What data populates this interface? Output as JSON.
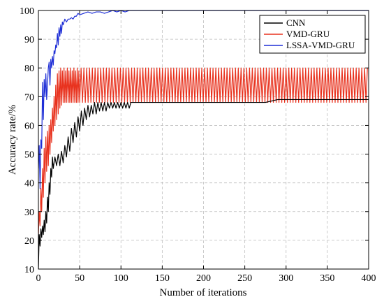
{
  "chart_data": {
    "type": "line",
    "title": "",
    "xlabel": "Number of iterations",
    "ylabel": "Accuracy rate/%",
    "xlim": [
      0,
      400
    ],
    "ylim": [
      10,
      100
    ],
    "x_ticks": [
      "0",
      "50",
      "100",
      "150",
      "200",
      "250",
      "300",
      "350",
      "400"
    ],
    "y_ticks": [
      "10",
      "20",
      "30",
      "40",
      "50",
      "60",
      "70",
      "80",
      "90",
      "100"
    ],
    "grid": true,
    "grid_style": "dashed",
    "legend_position": "top-right",
    "series": [
      {
        "name": "CNN",
        "color": "#000000",
        "points": [
          [
            0,
            10
          ],
          [
            1,
            22
          ],
          [
            2,
            18
          ],
          [
            3,
            24
          ],
          [
            4,
            21
          ],
          [
            5,
            25
          ],
          [
            6,
            22
          ],
          [
            7,
            27
          ],
          [
            8,
            23
          ],
          [
            9,
            30
          ],
          [
            10,
            26
          ],
          [
            11,
            35
          ],
          [
            12,
            30
          ],
          [
            13,
            40
          ],
          [
            14,
            36
          ],
          [
            15,
            45
          ],
          [
            16,
            42
          ],
          [
            17,
            49
          ],
          [
            18,
            45
          ],
          [
            20,
            49
          ],
          [
            22,
            46
          ],
          [
            24,
            50
          ],
          [
            26,
            46
          ],
          [
            28,
            51
          ],
          [
            30,
            47
          ],
          [
            32,
            53
          ],
          [
            34,
            49
          ],
          [
            36,
            56
          ],
          [
            38,
            51
          ],
          [
            40,
            59
          ],
          [
            42,
            54
          ],
          [
            44,
            61
          ],
          [
            46,
            56
          ],
          [
            48,
            63
          ],
          [
            50,
            58
          ],
          [
            52,
            65
          ],
          [
            54,
            60
          ],
          [
            56,
            66
          ],
          [
            58,
            62
          ],
          [
            60,
            67
          ],
          [
            62,
            63
          ],
          [
            64,
            67
          ],
          [
            66,
            64
          ],
          [
            68,
            68
          ],
          [
            70,
            64
          ],
          [
            72,
            68
          ],
          [
            74,
            65
          ],
          [
            76,
            68
          ],
          [
            78,
            65
          ],
          [
            80,
            68
          ],
          [
            82,
            65
          ],
          [
            84,
            68
          ],
          [
            86,
            66
          ],
          [
            88,
            68
          ],
          [
            90,
            66
          ],
          [
            92,
            68
          ],
          [
            94,
            66
          ],
          [
            96,
            68
          ],
          [
            98,
            66
          ],
          [
            100,
            68
          ],
          [
            102,
            66
          ],
          [
            104,
            68
          ],
          [
            106,
            66
          ],
          [
            108,
            68
          ],
          [
            110,
            66
          ],
          [
            112,
            68
          ],
          [
            115,
            68
          ],
          [
            130,
            68
          ],
          [
            150,
            68
          ],
          [
            175,
            68
          ],
          [
            200,
            68
          ],
          [
            225,
            68
          ],
          [
            250,
            68
          ],
          [
            275,
            68
          ],
          [
            290,
            69
          ],
          [
            300,
            69
          ],
          [
            325,
            69
          ],
          [
            350,
            69
          ],
          [
            375,
            69
          ],
          [
            400,
            69
          ]
        ]
      },
      {
        "name": "VMD-GRU",
        "color": "#e8321e",
        "points": [
          [
            0,
            22
          ],
          [
            1,
            30
          ],
          [
            2,
            25
          ],
          [
            3,
            38
          ],
          [
            4,
            30
          ],
          [
            5,
            45
          ],
          [
            6,
            35
          ],
          [
            7,
            52
          ],
          [
            8,
            40
          ],
          [
            9,
            56
          ],
          [
            10,
            44
          ],
          [
            11,
            58
          ],
          [
            12,
            46
          ],
          [
            13,
            60
          ],
          [
            14,
            50
          ],
          [
            15,
            62
          ],
          [
            16,
            54
          ],
          [
            17,
            66
          ],
          [
            18,
            58
          ],
          [
            19,
            70
          ],
          [
            20,
            60
          ],
          [
            21,
            74
          ],
          [
            22,
            62
          ],
          [
            23,
            78
          ],
          [
            24,
            64
          ],
          [
            25,
            79
          ],
          [
            26,
            66
          ],
          [
            27,
            80
          ],
          [
            28,
            67
          ],
          [
            29,
            79
          ],
          [
            30,
            68
          ],
          [
            31,
            80
          ],
          [
            32,
            68
          ],
          [
            33,
            79
          ],
          [
            34,
            68
          ],
          [
            35,
            80
          ],
          [
            36,
            68
          ],
          [
            37,
            79
          ],
          [
            38,
            68
          ],
          [
            39,
            80
          ],
          [
            40,
            68
          ],
          [
            41,
            79
          ],
          [
            42,
            68
          ],
          [
            43,
            80
          ],
          [
            44,
            68
          ],
          [
            45,
            79
          ],
          [
            46,
            68
          ],
          [
            47,
            80
          ],
          [
            48,
            68
          ],
          [
            49,
            79
          ],
          [
            50,
            68
          ]
        ],
        "oscillation": {
          "x_start": 50,
          "x_end": 400,
          "period": 3.4,
          "low": 68,
          "high": 80
        }
      },
      {
        "name": "LSSA-VMD-GRU",
        "color": "#1f2fd6",
        "points": [
          [
            0,
            45
          ],
          [
            1,
            53
          ],
          [
            2,
            38
          ],
          [
            3,
            55
          ],
          [
            4,
            52
          ],
          [
            5,
            75
          ],
          [
            6,
            62
          ],
          [
            7,
            76
          ],
          [
            8,
            70
          ],
          [
            9,
            78
          ],
          [
            10,
            69
          ],
          [
            11,
            74
          ],
          [
            12,
            80
          ],
          [
            13,
            82
          ],
          [
            14,
            74
          ],
          [
            15,
            83
          ],
          [
            16,
            80
          ],
          [
            17,
            84
          ],
          [
            18,
            81
          ],
          [
            19,
            86
          ],
          [
            20,
            85
          ],
          [
            21,
            88
          ],
          [
            22,
            87
          ],
          [
            23,
            92
          ],
          [
            24,
            88
          ],
          [
            25,
            94
          ],
          [
            26,
            91
          ],
          [
            27,
            95
          ],
          [
            28,
            92
          ],
          [
            29,
            96
          ],
          [
            30,
            95
          ],
          [
            32,
            97
          ],
          [
            34,
            96
          ],
          [
            36,
            97
          ],
          [
            38,
            97
          ],
          [
            40,
            97.5
          ],
          [
            42,
            97
          ],
          [
            44,
            98
          ],
          [
            46,
            98
          ],
          [
            48,
            99
          ],
          [
            50,
            98.5
          ],
          [
            55,
            99
          ],
          [
            60,
            99.5
          ],
          [
            65,
            99
          ],
          [
            70,
            99.5
          ],
          [
            75,
            99.5
          ],
          [
            80,
            99
          ],
          [
            85,
            99.5
          ],
          [
            90,
            100
          ],
          [
            95,
            99.5
          ],
          [
            100,
            100
          ],
          [
            105,
            99.5
          ],
          [
            110,
            100
          ],
          [
            115,
            100
          ],
          [
            120,
            100
          ],
          [
            130,
            100
          ],
          [
            200,
            100
          ],
          [
            300,
            100
          ],
          [
            400,
            100
          ]
        ]
      }
    ]
  }
}
